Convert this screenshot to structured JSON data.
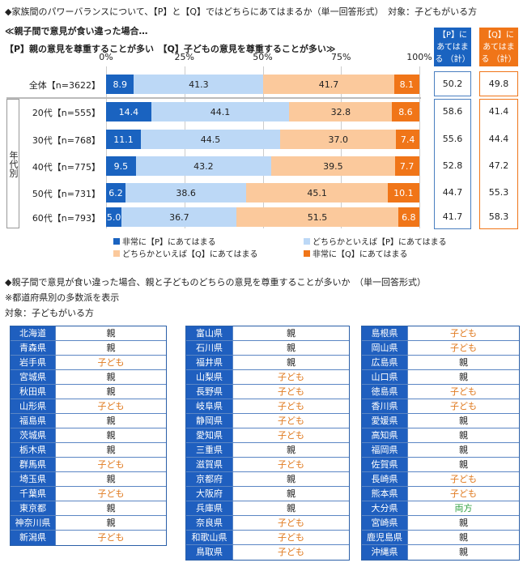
{
  "title": "◆家族間のパワーバランスについて、【P】と【Q】ではどちらにあてはまるか（単一回答形式）　対象：子どもがいる方",
  "subtitle1": "≪親子間で意見が食い違った場合…",
  "subtitle2": "【P】親の意見を尊重することが多い　【Q】子どもの意見を尊重することが多い≫",
  "age_group_label": "年代別",
  "colors": {
    "p_strong": "#1a63c0",
    "p_weak": "#bcd8f6",
    "q_weak": "#fbc99c",
    "q_strong": "#f07518",
    "child_text": "#e07a1f",
    "both_text": "#2e9e3e",
    "pref_header": "#1f5fbf"
  },
  "chart_data": {
    "type": "bar",
    "orientation": "horizontal-stacked-100",
    "ticks": [
      "0%",
      "25%",
      "50%",
      "75%",
      "100%"
    ],
    "xlim": [
      0,
      100
    ],
    "grid": true,
    "legend_placement": "bottom",
    "categories": [
      "全体【n=3622】",
      "20代【n=555】",
      "30代【n=768】",
      "40代【n=775】",
      "50代【n=731】",
      "60代【n=793】"
    ],
    "series": [
      {
        "name": "非常に【P】にあてはまる",
        "values": [
          8.9,
          14.4,
          11.1,
          9.5,
          6.2,
          5.0
        ]
      },
      {
        "name": "どちらかといえば【P】にあてはまる",
        "values": [
          41.3,
          44.1,
          44.5,
          43.2,
          38.6,
          36.7
        ]
      },
      {
        "name": "どちらかといえば【Q】にあてはまる",
        "values": [
          41.7,
          32.8,
          37.0,
          39.5,
          45.1,
          51.5
        ]
      },
      {
        "name": "非常に【Q】にあてはまる",
        "values": [
          8.1,
          8.6,
          7.4,
          7.7,
          10.1,
          6.8
        ]
      }
    ],
    "p_total_header": "【P】に あてはまる （計）",
    "q_total_header": "【Q】に あてはまる （計）",
    "p_total": [
      "50.2",
      "58.6",
      "55.6",
      "52.8",
      "44.7",
      "41.7"
    ],
    "q_total": [
      "49.8",
      "41.4",
      "44.4",
      "47.2",
      "55.3",
      "58.3"
    ]
  },
  "section2": {
    "title": "◆親子間で意見が食い違った場合、親と子どものどちらの意見を尊重することが多いか　（単一回答形式）",
    "note": "※都道府県別の多数派を表示",
    "target": "対象：子どもがいる方",
    "columns": [
      [
        [
          "北海道",
          "親"
        ],
        [
          "青森県",
          "親"
        ],
        [
          "岩手県",
          "子ども"
        ],
        [
          "宮城県",
          "親"
        ],
        [
          "秋田県",
          "親"
        ],
        [
          "山形県",
          "子ども"
        ],
        [
          "福島県",
          "親"
        ],
        [
          "茨城県",
          "親"
        ],
        [
          "栃木県",
          "親"
        ],
        [
          "群馬県",
          "子ども"
        ],
        [
          "埼玉県",
          "親"
        ],
        [
          "千葉県",
          "子ども"
        ],
        [
          "東京都",
          "親"
        ],
        [
          "神奈川県",
          "親"
        ],
        [
          "新潟県",
          "子ども"
        ]
      ],
      [
        [
          "富山県",
          "親"
        ],
        [
          "石川県",
          "親"
        ],
        [
          "福井県",
          "親"
        ],
        [
          "山梨県",
          "子ども"
        ],
        [
          "長野県",
          "子ども"
        ],
        [
          "岐阜県",
          "子ども"
        ],
        [
          "静岡県",
          "子ども"
        ],
        [
          "愛知県",
          "子ども"
        ],
        [
          "三重県",
          "親"
        ],
        [
          "滋賀県",
          "子ども"
        ],
        [
          "京都府",
          "親"
        ],
        [
          "大阪府",
          "親"
        ],
        [
          "兵庫県",
          "親"
        ],
        [
          "奈良県",
          "子ども"
        ],
        [
          "和歌山県",
          "子ども"
        ],
        [
          "鳥取県",
          "子ども"
        ]
      ],
      [
        [
          "島根県",
          "子ども"
        ],
        [
          "岡山県",
          "子ども"
        ],
        [
          "広島県",
          "親"
        ],
        [
          "山口県",
          "親"
        ],
        [
          "徳島県",
          "子ども"
        ],
        [
          "香川県",
          "子ども"
        ],
        [
          "愛媛県",
          "親"
        ],
        [
          "高知県",
          "親"
        ],
        [
          "福岡県",
          "親"
        ],
        [
          "佐賀県",
          "親"
        ],
        [
          "長崎県",
          "子ども"
        ],
        [
          "熊本県",
          "子ども"
        ],
        [
          "大分県",
          "両方"
        ],
        [
          "宮崎県",
          "親"
        ],
        [
          "鹿児島県",
          "親"
        ],
        [
          "沖縄県",
          "親"
        ]
      ]
    ]
  }
}
